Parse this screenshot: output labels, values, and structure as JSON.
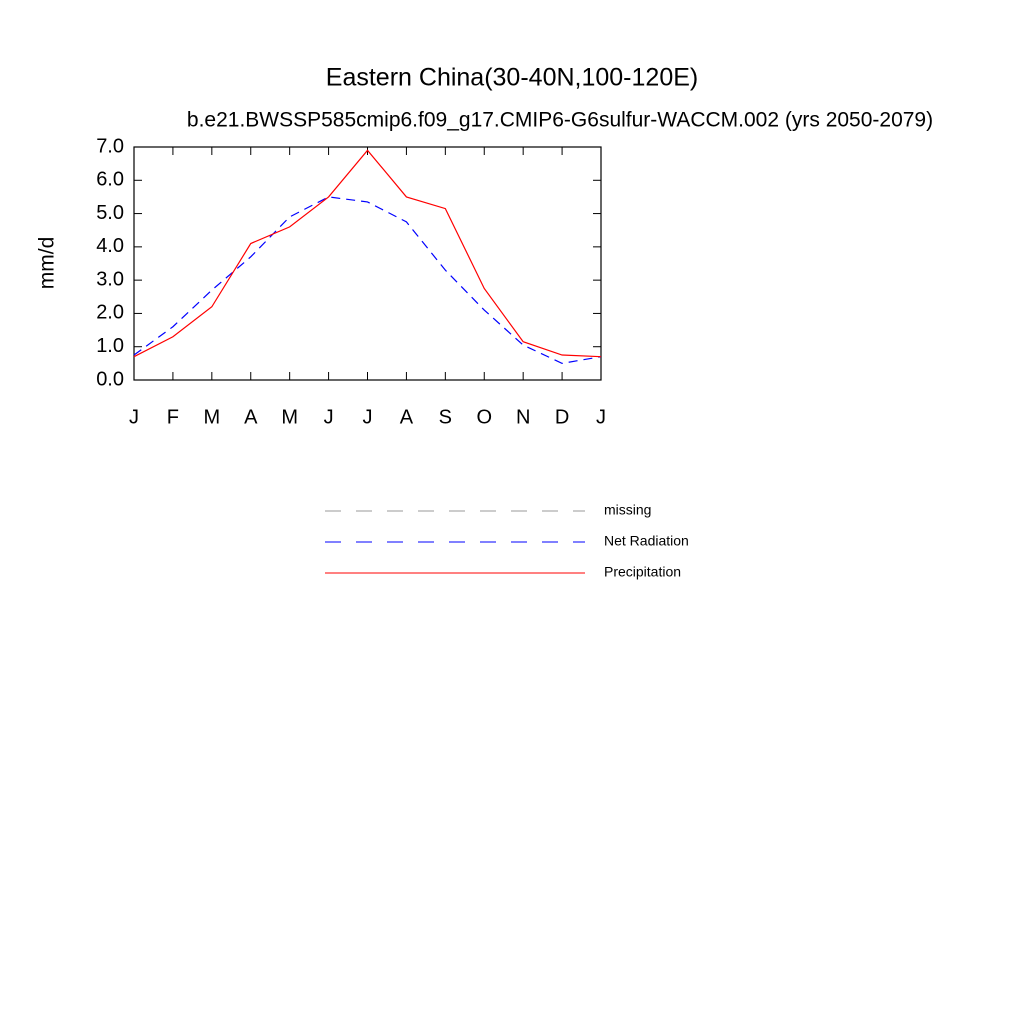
{
  "chart_data": {
    "type": "line",
    "title": "Eastern China(30-40N,100-120E)",
    "subtitle": "b.e21.BWSSP585cmip6.f09_g17.CMIP6-G6sulfur-WACCM.002 (yrs 2050-2079)",
    "y_label": "mm/d",
    "categories": [
      "J",
      "F",
      "M",
      "A",
      "M",
      "J",
      "J",
      "A",
      "S",
      "O",
      "N",
      "D",
      "J"
    ],
    "ylim": [
      0,
      7
    ],
    "yticks": [
      {
        "value": 0,
        "label": "0.0"
      },
      {
        "value": 1,
        "label": "1.0"
      },
      {
        "value": 2,
        "label": "2.0"
      },
      {
        "value": 3,
        "label": "3.0"
      },
      {
        "value": 4,
        "label": "4.0"
      },
      {
        "value": 5,
        "label": "5.0"
      },
      {
        "value": 6,
        "label": "6.0"
      },
      {
        "value": 7,
        "label": "7.0"
      }
    ],
    "series": [
      {
        "name": "missing",
        "color": "#999999",
        "dash": true,
        "values": [
          null,
          null,
          null,
          null,
          null,
          null,
          null,
          null,
          null,
          null,
          null,
          null,
          null
        ]
      },
      {
        "name": "Net Radiation",
        "color": "#0000ff",
        "dash": true,
        "values": [
          0.75,
          1.6,
          2.7,
          3.7,
          4.9,
          5.5,
          5.35,
          4.75,
          3.3,
          2.1,
          1.05,
          0.5,
          0.7
        ]
      },
      {
        "name": "Precipitation",
        "color": "#ff0000",
        "dash": false,
        "values": [
          0.7,
          1.3,
          2.2,
          4.1,
          4.6,
          5.5,
          6.9,
          5.5,
          5.15,
          2.75,
          1.15,
          0.75,
          0.7
        ]
      }
    ]
  }
}
